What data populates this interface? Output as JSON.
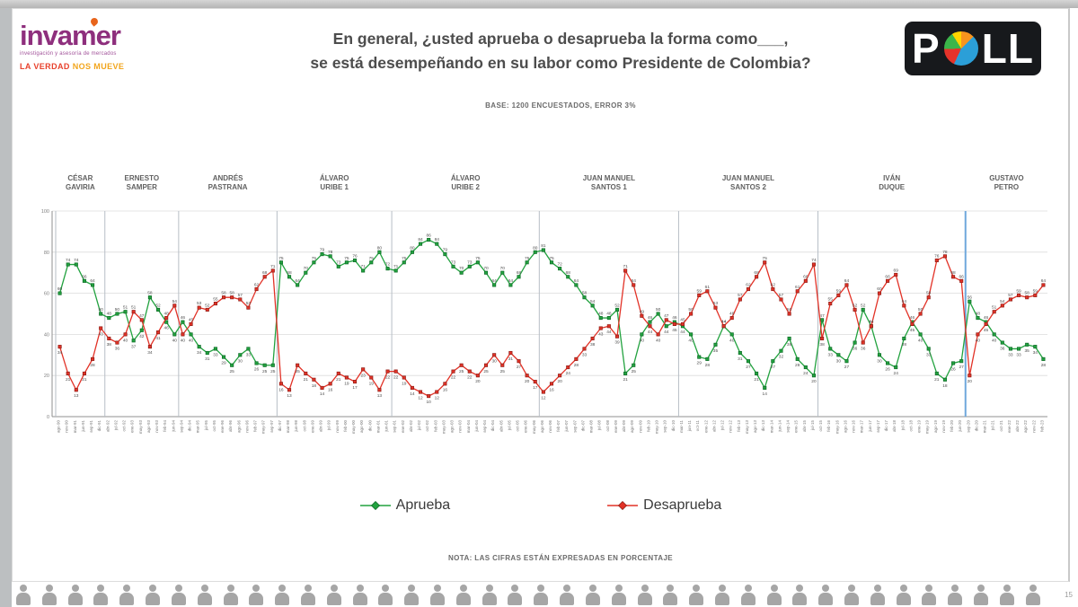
{
  "header": {
    "brand": "invamer",
    "brand_tagline": "investigación y asesoría de mercados",
    "brand_slogan_1": "LA VERDAD",
    "brand_slogan_2": "NOS MUEVE",
    "title_line1": "En general, ¿usted aprueba o desaprueba la forma como___,",
    "title_line2": "se está desempeñando en su labor como Presidente de Colombia?",
    "base_note": "BASE: 1200 ENCUESTADOS, ERROR 3%",
    "poll_logo_p": "P",
    "poll_logo_ll": "LL"
  },
  "footer": {
    "nota": "NOTA: LAS CIFRAS ESTÁN EXPRESADAS EN PORCENTAJE",
    "page_number": "15",
    "audience_icon_count": 40
  },
  "chart_data": {
    "type": "line",
    "title": "En general, ¿usted aprueba o desaprueba la forma como ___ se está desempeñando en su labor como Presidente de Colombia?",
    "xlabel": "",
    "ylabel": "",
    "ylim": [
      0,
      100
    ],
    "yticks": [
      0,
      20,
      40,
      60,
      80,
      100
    ],
    "grid": true,
    "legend_position": "bottom",
    "approve_color": "#22a23f",
    "disapprove_color": "#e23227",
    "petro_divider_color": "#6fa8dc",
    "legend": [
      {
        "key": "approve",
        "label": "Aprueba",
        "color": "#22a23f"
      },
      {
        "key": "disapprove",
        "label": "Desaprueba",
        "color": "#e23227"
      }
    ],
    "time_span": {
      "first_tick": "ago-90",
      "last_tick": "feb-23"
    },
    "presidents": [
      {
        "name_lines": [
          "CÉSAR",
          "GAVIRIA"
        ],
        "approve": [
          60,
          74,
          74,
          66,
          64,
          50
        ],
        "disapprove": [
          34,
          21,
          13,
          21,
          28,
          43
        ]
      },
      {
        "name_lines": [
          "ERNESTO",
          "SAMPER"
        ],
        "approve": [
          48,
          50,
          51,
          37,
          42,
          58,
          52,
          46,
          40
        ],
        "disapprove": [
          38,
          36,
          40,
          51,
          47,
          34,
          41,
          48,
          54
        ]
      },
      {
        "name_lines": [
          "ANDRÉS",
          "PASTRANA"
        ],
        "approve": [
          46,
          40,
          34,
          31,
          33,
          29,
          25,
          30,
          33,
          26,
          25,
          25
        ],
        "disapprove": [
          40,
          45,
          53,
          52,
          55,
          58,
          58,
          57,
          53,
          62,
          68,
          71
        ]
      },
      {
        "name_lines": [
          "ÁLVARO",
          "URIBE 1"
        ],
        "approve": [
          75,
          68,
          64,
          70,
          75,
          79,
          78,
          73,
          75,
          76,
          71,
          75,
          80,
          72
        ],
        "disapprove": [
          16,
          13,
          25,
          21,
          18,
          14,
          16,
          21,
          19,
          17,
          23,
          19,
          13,
          22
        ]
      },
      {
        "name_lines": [
          "ÁLVARO",
          "URIBE 2"
        ],
        "approve": [
          71,
          75,
          80,
          84,
          86,
          84,
          79,
          73,
          70,
          73,
          75,
          70,
          64,
          70,
          64,
          68,
          75,
          80
        ],
        "disapprove": [
          22,
          19,
          14,
          12,
          10,
          12,
          16,
          22,
          25,
          22,
          20,
          25,
          30,
          25,
          31,
          27,
          20,
          17
        ]
      },
      {
        "name_lines": [
          "JUAN MANUEL",
          "SANTOS 1"
        ],
        "approve": [
          81,
          75,
          72,
          68,
          64,
          58,
          54,
          48,
          48,
          52,
          21,
          25,
          40,
          46,
          50,
          44,
          46
        ],
        "disapprove": [
          12,
          16,
          20,
          24,
          28,
          33,
          38,
          43,
          44,
          39,
          71,
          64,
          49,
          44,
          40,
          47,
          45
        ]
      },
      {
        "name_lines": [
          "JUAN MANUEL",
          "SANTOS 2"
        ],
        "approve": [
          44,
          40,
          29,
          28,
          35,
          44,
          40,
          31,
          27,
          21,
          14,
          27,
          32,
          38,
          28,
          24,
          20
        ],
        "disapprove": [
          45,
          50,
          59,
          61,
          53,
          44,
          48,
          57,
          62,
          68,
          75,
          62,
          57,
          50,
          61,
          66,
          74
        ]
      },
      {
        "name_lines": [
          "IVÁN",
          "DUQUE"
        ],
        "approve": [
          47,
          33,
          30,
          27,
          36,
          52,
          44,
          30,
          26,
          24,
          38,
          46,
          40,
          33,
          21,
          18,
          26,
          27
        ],
        "disapprove": [
          38,
          55,
          59,
          64,
          52,
          36,
          44,
          60,
          66,
          69,
          54,
          45,
          50,
          58,
          76,
          78,
          68,
          66
        ]
      },
      {
        "name_lines": [
          "GUSTAVO",
          "PETRO"
        ],
        "approve": [
          56,
          48,
          46,
          40,
          36,
          33,
          33,
          35,
          34,
          28
        ],
        "disapprove": [
          20,
          40,
          45,
          51,
          54,
          57,
          59,
          58,
          59,
          64
        ]
      }
    ]
  }
}
